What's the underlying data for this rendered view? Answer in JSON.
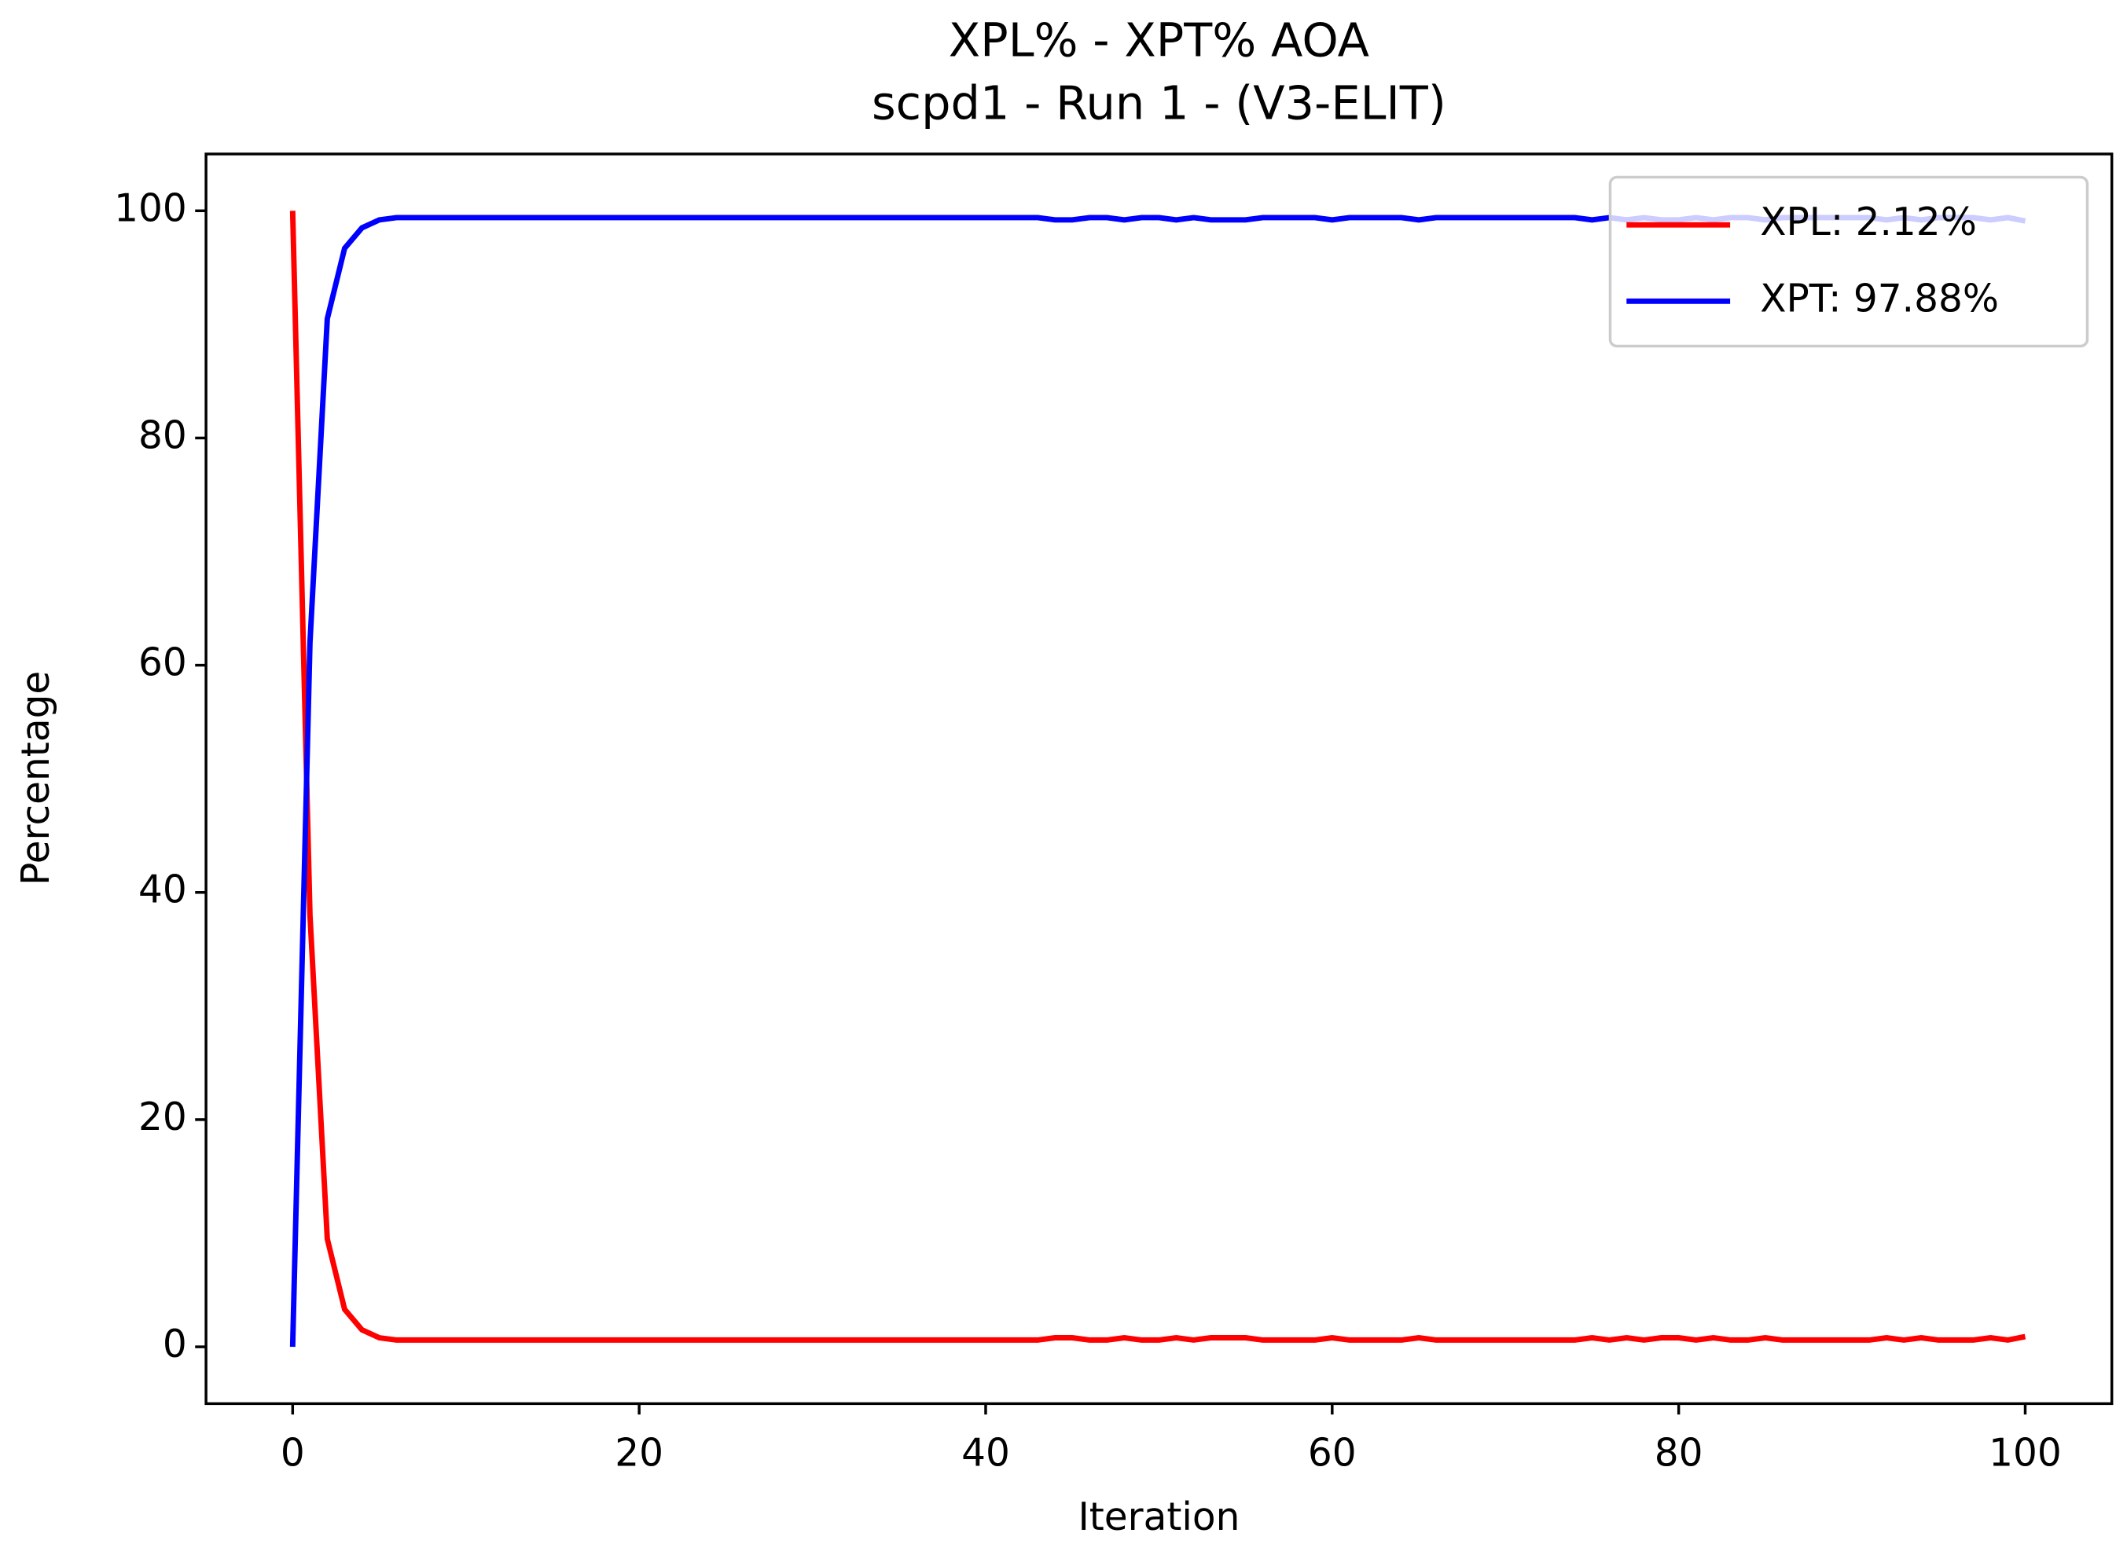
{
  "chart_data": {
    "type": "line",
    "title": "XPL% - XPT% AOA",
    "subtitle": "scpd1 - Run 1 - (V3-ELIT)",
    "x_label": "Iteration",
    "y_label": "Percentage",
    "x": [
      0,
      1,
      2,
      3,
      4,
      5,
      6,
      7,
      8,
      9,
      10,
      11,
      12,
      13,
      14,
      15,
      16,
      17,
      18,
      19,
      20,
      21,
      22,
      23,
      24,
      25,
      26,
      27,
      28,
      29,
      30,
      31,
      32,
      33,
      34,
      35,
      36,
      37,
      38,
      39,
      40,
      41,
      42,
      43,
      44,
      45,
      46,
      47,
      48,
      49,
      50,
      51,
      52,
      53,
      54,
      55,
      56,
      57,
      58,
      59,
      60,
      61,
      62,
      63,
      64,
      65,
      66,
      67,
      68,
      69,
      70,
      71,
      72,
      73,
      74,
      75,
      76,
      77,
      78,
      79,
      80,
      81,
      82,
      83,
      84,
      85,
      86,
      87,
      88,
      89,
      90,
      91,
      92,
      93,
      94,
      95,
      96,
      97,
      98,
      99,
      100
    ],
    "series": [
      {
        "name": "XPL: 2.12%",
        "color": "#ff0000",
        "values": [
          100,
          38,
          9.5,
          3.3,
          1.5,
          0.8,
          0.6,
          0.6,
          0.6,
          0.6,
          0.6,
          0.6,
          0.6,
          0.6,
          0.6,
          0.6,
          0.6,
          0.6,
          0.6,
          0.6,
          0.6,
          0.6,
          0.6,
          0.6,
          0.6,
          0.6,
          0.6,
          0.6,
          0.6,
          0.6,
          0.6,
          0.6,
          0.6,
          0.6,
          0.6,
          0.6,
          0.6,
          0.6,
          0.6,
          0.6,
          0.6,
          0.6,
          0.6,
          0.6,
          0.8,
          0.8,
          0.6,
          0.6,
          0.8,
          0.6,
          0.6,
          0.8,
          0.6,
          0.8,
          0.8,
          0.8,
          0.6,
          0.6,
          0.6,
          0.6,
          0.8,
          0.6,
          0.6,
          0.6,
          0.6,
          0.8,
          0.6,
          0.6,
          0.6,
          0.6,
          0.6,
          0.6,
          0.6,
          0.6,
          0.6,
          0.8,
          0.6,
          0.8,
          0.6,
          0.8,
          0.8,
          0.6,
          0.8,
          0.6,
          0.6,
          0.8,
          0.6,
          0.6,
          0.6,
          0.6,
          0.6,
          0.6,
          0.8,
          0.6,
          0.8,
          0.6,
          0.6,
          0.6,
          0.8,
          0.6,
          0.9
        ]
      },
      {
        "name": "XPT: 97.88%",
        "color": "#0000ff",
        "values": [
          0,
          62,
          90.5,
          96.7,
          98.5,
          99.2,
          99.4,
          99.4,
          99.4,
          99.4,
          99.4,
          99.4,
          99.4,
          99.4,
          99.4,
          99.4,
          99.4,
          99.4,
          99.4,
          99.4,
          99.4,
          99.4,
          99.4,
          99.4,
          99.4,
          99.4,
          99.4,
          99.4,
          99.4,
          99.4,
          99.4,
          99.4,
          99.4,
          99.4,
          99.4,
          99.4,
          99.4,
          99.4,
          99.4,
          99.4,
          99.4,
          99.4,
          99.4,
          99.4,
          99.2,
          99.2,
          99.4,
          99.4,
          99.2,
          99.4,
          99.4,
          99.2,
          99.4,
          99.2,
          99.2,
          99.2,
          99.4,
          99.4,
          99.4,
          99.4,
          99.2,
          99.4,
          99.4,
          99.4,
          99.4,
          99.2,
          99.4,
          99.4,
          99.4,
          99.4,
          99.4,
          99.4,
          99.4,
          99.4,
          99.4,
          99.2,
          99.4,
          99.2,
          99.4,
          99.2,
          99.2,
          99.4,
          99.2,
          99.4,
          99.4,
          99.2,
          99.4,
          99.4,
          99.4,
          99.4,
          99.4,
          99.4,
          99.2,
          99.4,
          99.2,
          99.4,
          99.4,
          99.4,
          99.2,
          99.4,
          99.1
        ]
      }
    ],
    "xlim": [
      -5,
      105
    ],
    "ylim": [
      -5,
      105
    ],
    "xticks": [
      0,
      20,
      40,
      60,
      80,
      100
    ],
    "yticks": [
      0,
      20,
      40,
      60,
      80,
      100
    ],
    "grid": false,
    "legend": "upper right"
  }
}
